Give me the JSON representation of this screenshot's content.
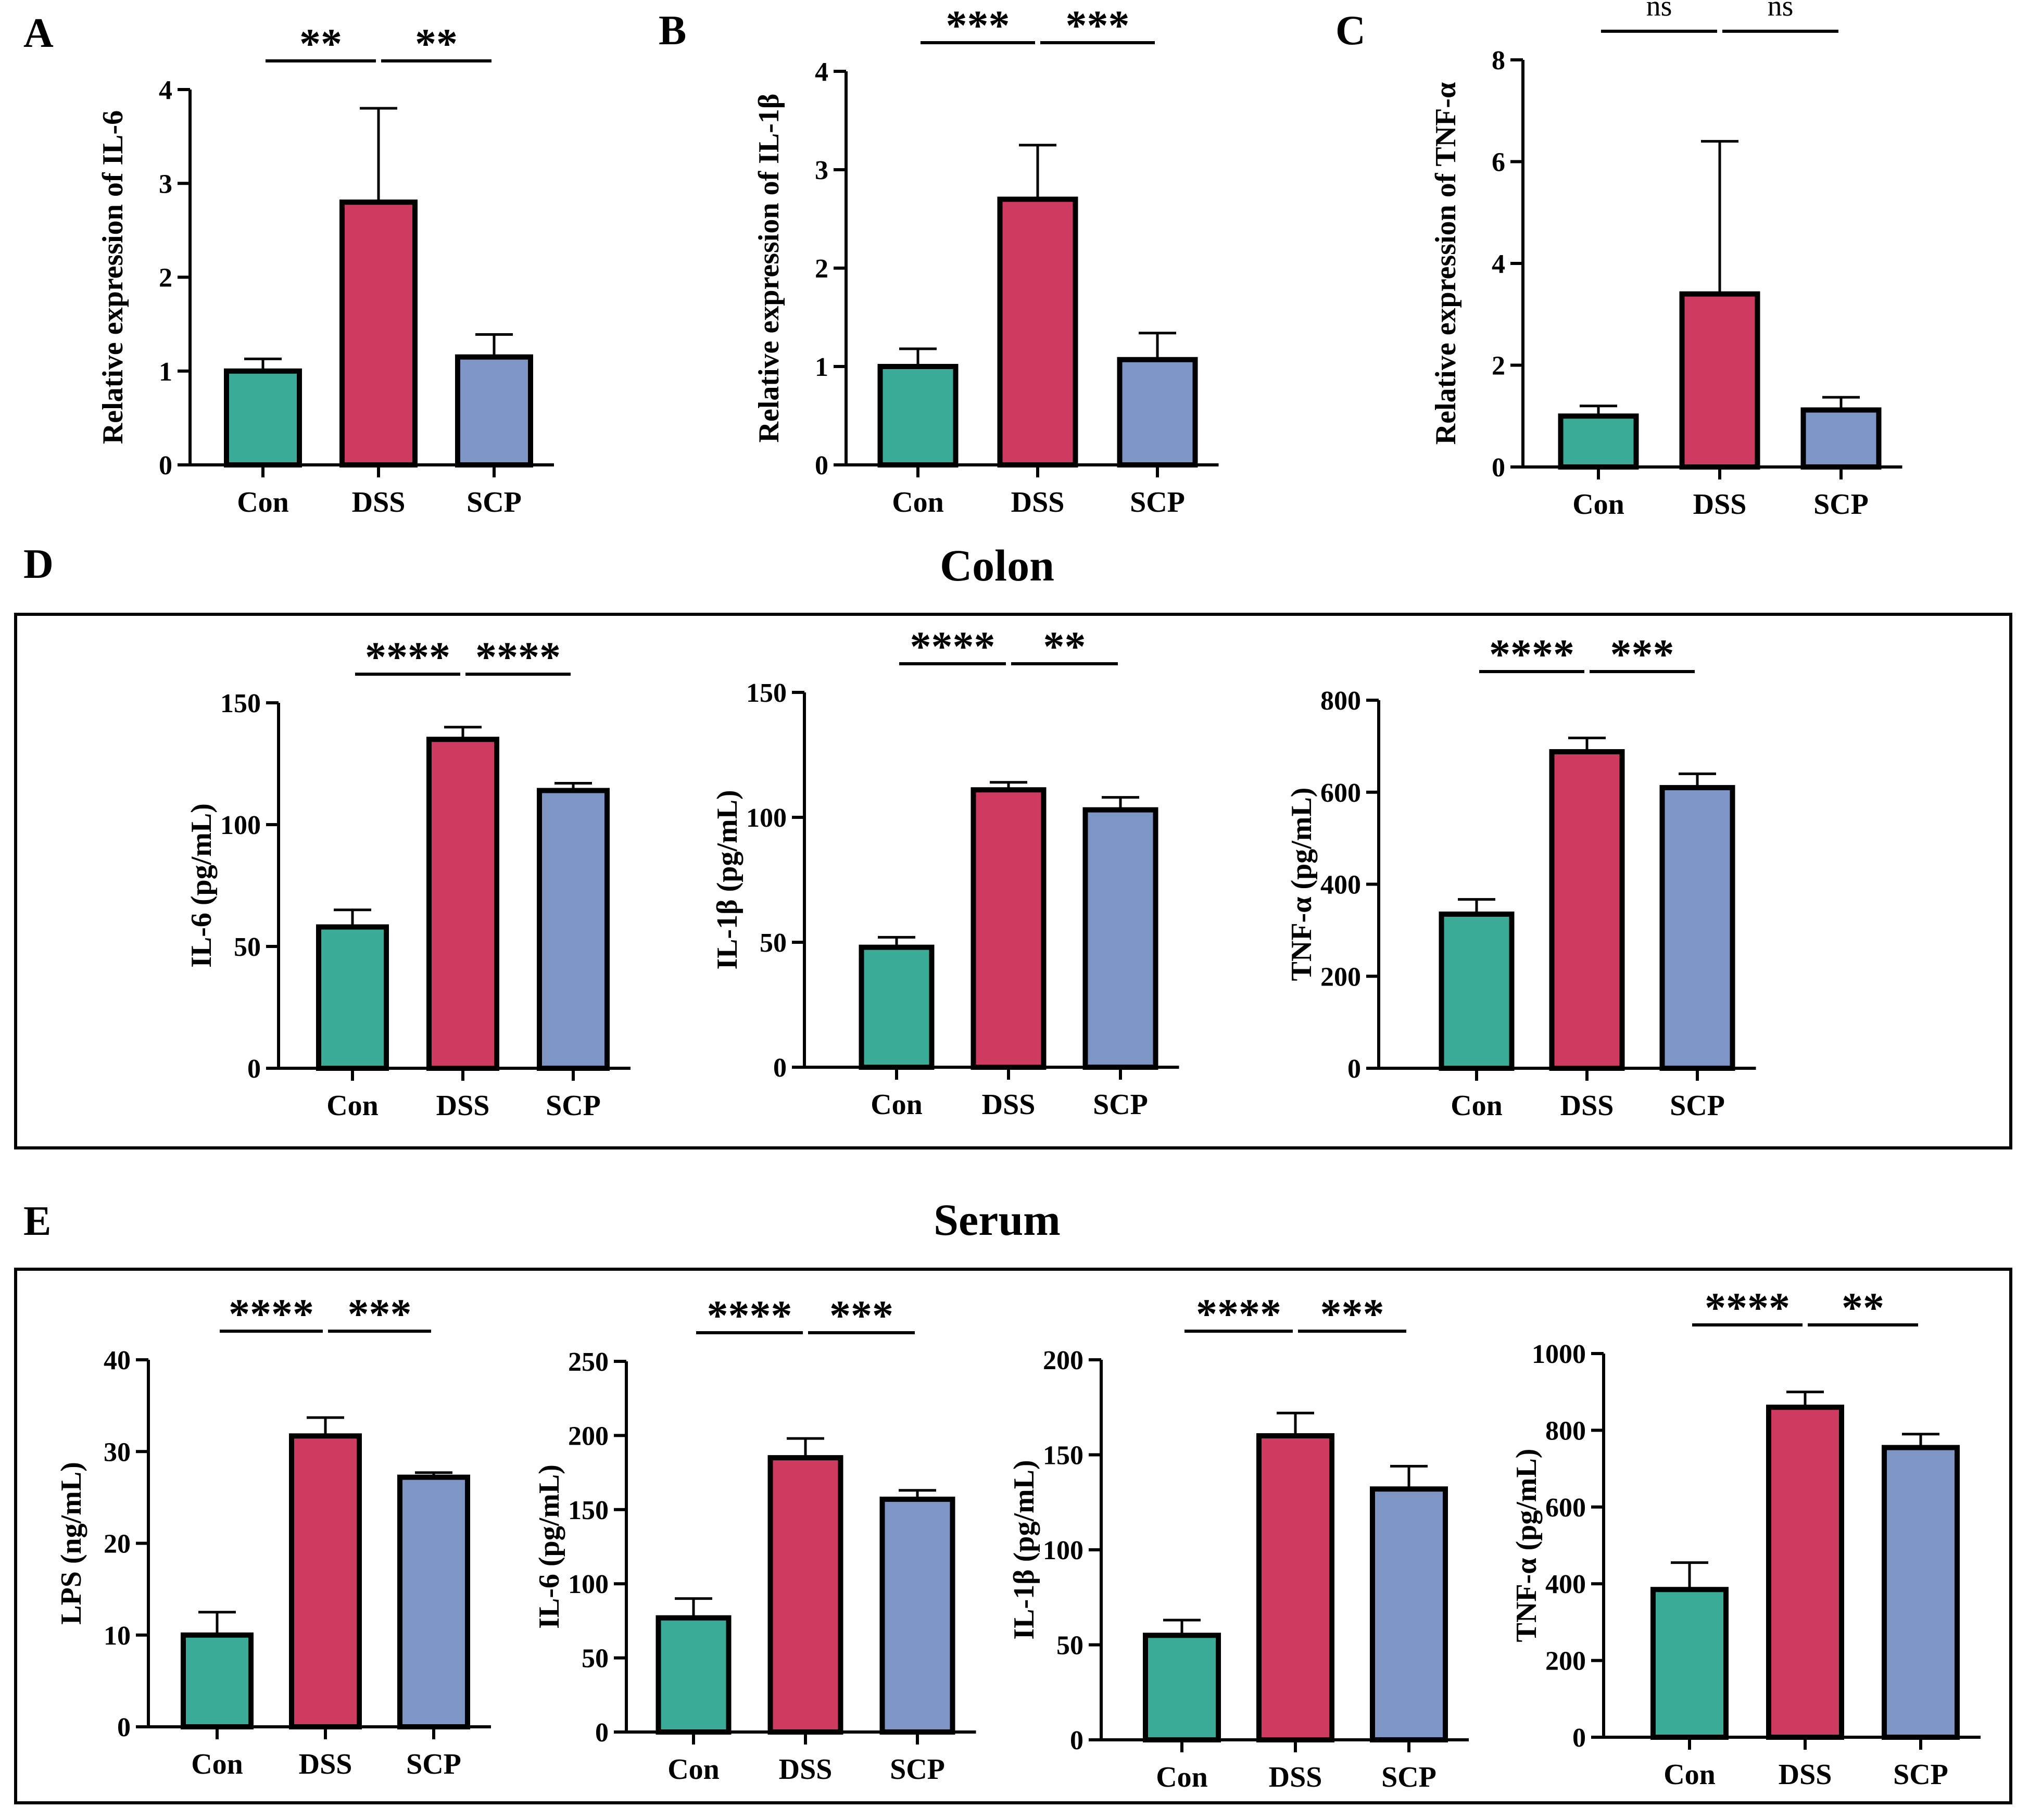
{
  "colors": {
    "con": "#3aab96",
    "dss": "#ce3a60",
    "scp": "#7e96c6",
    "outline": "#000000"
  },
  "sections": {
    "colon_title": "Colon",
    "serum_title": "Serum"
  },
  "chart_data": [
    {
      "id": "A",
      "type": "bar",
      "panel_label": "A",
      "title": "",
      "categories": [
        "Con",
        "DSS",
        "SCP"
      ],
      "values": [
        1.0,
        2.8,
        1.15
      ],
      "errors": [
        0.13,
        1.0,
        0.24
      ],
      "xlabel": "",
      "ylabel": "Relative expression of IL-6",
      "ylim": [
        0,
        4
      ],
      "yticks": [
        0,
        1,
        2,
        3,
        4
      ],
      "ytick_labels": [
        "0",
        "1",
        "2",
        "3",
        "4"
      ],
      "significance": [
        {
          "from": 0,
          "to": 1,
          "label": "**"
        },
        {
          "from": 1,
          "to": 2,
          "label": "**"
        }
      ]
    },
    {
      "id": "B",
      "type": "bar",
      "panel_label": "B",
      "title": "",
      "categories": [
        "Con",
        "DSS",
        "SCP"
      ],
      "values": [
        1.0,
        2.7,
        1.07
      ],
      "errors": [
        0.18,
        0.55,
        0.27
      ],
      "xlabel": "",
      "ylabel": "Relative expression of IL-1β",
      "ylim": [
        0,
        4
      ],
      "yticks": [
        0,
        1,
        2,
        3,
        4
      ],
      "ytick_labels": [
        "0",
        "1",
        "2",
        "3",
        "4"
      ],
      "significance": [
        {
          "from": 0,
          "to": 1,
          "label": "***"
        },
        {
          "from": 1,
          "to": 2,
          "label": "***"
        }
      ]
    },
    {
      "id": "C",
      "type": "bar",
      "panel_label": "C",
      "title": "",
      "categories": [
        "Con",
        "DSS",
        "SCP"
      ],
      "values": [
        1.0,
        3.4,
        1.12
      ],
      "errors": [
        0.2,
        3.0,
        0.25
      ],
      "xlabel": "",
      "ylabel": "Relative expression of TNF-α",
      "ylim": [
        0,
        8
      ],
      "yticks": [
        0,
        2,
        4,
        6,
        8
      ],
      "ytick_labels": [
        "0",
        "2",
        "4",
        "6",
        "8"
      ],
      "significance": [
        {
          "from": 0,
          "to": 1,
          "label": "ns"
        },
        {
          "from": 1,
          "to": 2,
          "label": "ns"
        }
      ]
    },
    {
      "id": "D1",
      "type": "bar",
      "group": "Colon",
      "categories": [
        "Con",
        "DSS",
        "SCP"
      ],
      "values": [
        58,
        135,
        114
      ],
      "errors": [
        7,
        5,
        3
      ],
      "xlabel": "",
      "ylabel": "IL-6 (pg/mL)",
      "ylim": [
        0,
        150
      ],
      "yticks": [
        0,
        50,
        100,
        150
      ],
      "ytick_labels": [
        "0",
        "50",
        "100",
        "150"
      ],
      "significance": [
        {
          "from": 0,
          "to": 1,
          "label": "****"
        },
        {
          "from": 1,
          "to": 2,
          "label": "****"
        }
      ]
    },
    {
      "id": "D2",
      "type": "bar",
      "group": "Colon",
      "categories": [
        "Con",
        "DSS",
        "SCP"
      ],
      "values": [
        48,
        111,
        103
      ],
      "errors": [
        4,
        3,
        5
      ],
      "xlabel": "",
      "ylabel": "IL-1β (pg/mL)",
      "ylim": [
        0,
        150
      ],
      "yticks": [
        0,
        50,
        100,
        150
      ],
      "ytick_labels": [
        "0",
        "50",
        "100",
        "150"
      ],
      "significance": [
        {
          "from": 0,
          "to": 1,
          "label": "****"
        },
        {
          "from": 1,
          "to": 2,
          "label": "**"
        }
      ]
    },
    {
      "id": "D3",
      "type": "bar",
      "group": "Colon",
      "categories": [
        "Con",
        "DSS",
        "SCP"
      ],
      "values": [
        335,
        688,
        610
      ],
      "errors": [
        32,
        30,
        30
      ],
      "xlabel": "",
      "ylabel": "TNF-α (pg/mL)",
      "ylim": [
        0,
        800
      ],
      "yticks": [
        0,
        200,
        400,
        600,
        800
      ],
      "ytick_labels": [
        "0",
        "200",
        "400",
        "600",
        "800"
      ],
      "significance": [
        {
          "from": 0,
          "to": 1,
          "label": "****"
        },
        {
          "from": 1,
          "to": 2,
          "label": "***"
        }
      ]
    },
    {
      "id": "E1",
      "type": "bar",
      "group": "Serum",
      "categories": [
        "Con",
        "DSS",
        "SCP"
      ],
      "values": [
        10,
        31.7,
        27.2
      ],
      "errors": [
        2.5,
        2.0,
        0.5
      ],
      "xlabel": "",
      "ylabel": "LPS (ng/mL)",
      "ylim": [
        0,
        40
      ],
      "yticks": [
        0,
        10,
        20,
        30,
        40
      ],
      "ytick_labels": [
        "0",
        "10",
        "20",
        "30",
        "40"
      ],
      "significance": [
        {
          "from": 0,
          "to": 1,
          "label": "****"
        },
        {
          "from": 1,
          "to": 2,
          "label": "***"
        }
      ]
    },
    {
      "id": "E2",
      "type": "bar",
      "group": "Serum",
      "categories": [
        "Con",
        "DSS",
        "SCP"
      ],
      "values": [
        77,
        185,
        157
      ],
      "errors": [
        13,
        13,
        6
      ],
      "xlabel": "",
      "ylabel": "IL-6 (pg/mL)",
      "ylim": [
        0,
        250
      ],
      "yticks": [
        0,
        50,
        100,
        150,
        200,
        250
      ],
      "ytick_labels": [
        "0",
        "50",
        "100",
        "150",
        "200",
        "250"
      ],
      "significance": [
        {
          "from": 0,
          "to": 1,
          "label": "****"
        },
        {
          "from": 1,
          "to": 2,
          "label": "***"
        }
      ]
    },
    {
      "id": "E3",
      "type": "bar",
      "group": "Serum",
      "categories": [
        "Con",
        "DSS",
        "SCP"
      ],
      "values": [
        55,
        160,
        132
      ],
      "errors": [
        8,
        12,
        12
      ],
      "xlabel": "",
      "ylabel": "IL-1β (pg/mL)",
      "ylim": [
        0,
        200
      ],
      "yticks": [
        0,
        50,
        100,
        150,
        200
      ],
      "ytick_labels": [
        "0",
        "50",
        "100",
        "150",
        "200"
      ],
      "significance": [
        {
          "from": 0,
          "to": 1,
          "label": "****"
        },
        {
          "from": 1,
          "to": 2,
          "label": "***"
        }
      ]
    },
    {
      "id": "E4",
      "type": "bar",
      "group": "Serum",
      "categories": [
        "Con",
        "DSS",
        "SCP"
      ],
      "values": [
        385,
        860,
        755
      ],
      "errors": [
        70,
        40,
        35
      ],
      "xlabel": "",
      "ylabel": "TNF-α (pg/mL)",
      "ylim": [
        0,
        1000
      ],
      "yticks": [
        0,
        200,
        400,
        600,
        800,
        1000
      ],
      "ytick_labels": [
        "0",
        "200",
        "400",
        "600",
        "800",
        "1000"
      ],
      "significance": [
        {
          "from": 0,
          "to": 1,
          "label": "****"
        },
        {
          "from": 1,
          "to": 2,
          "label": "**"
        }
      ]
    }
  ],
  "panel_labels": {
    "D": "D",
    "E": "E"
  }
}
